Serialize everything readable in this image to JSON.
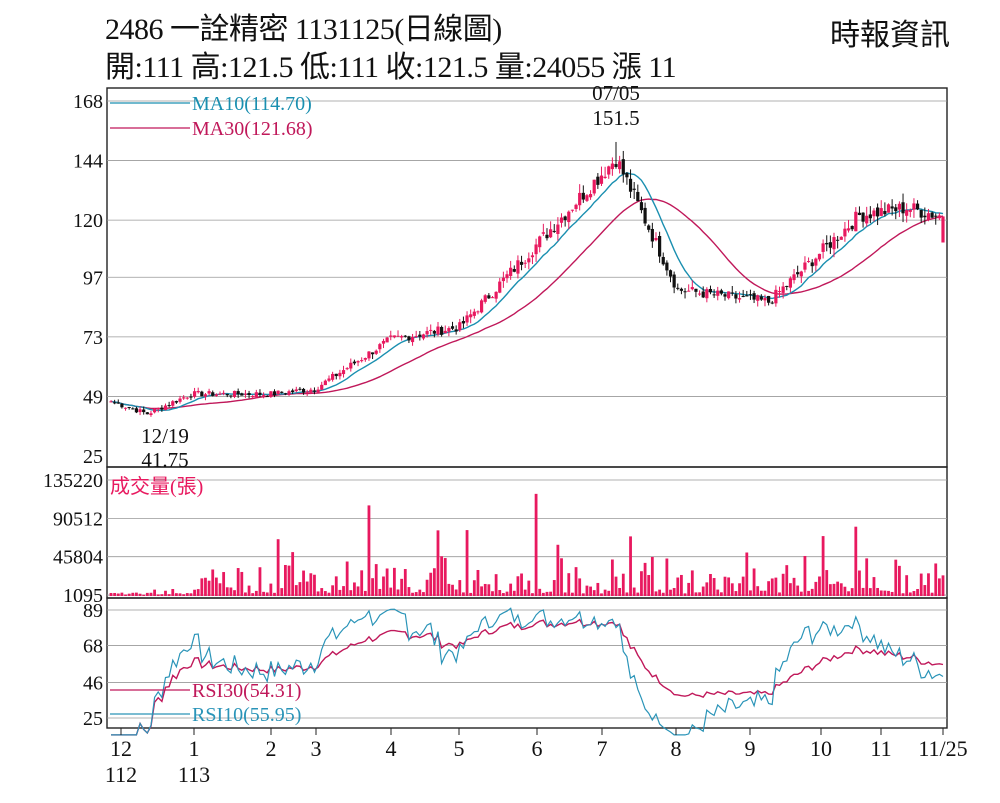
{
  "header": {
    "title": "2486  一詮精密 1131125(日線圖)",
    "stats": "開:111 高:121.5 低:111 收:121.5 量:24055 漲 11",
    "source": "時報資訊"
  },
  "colors": {
    "up": "#e8195f",
    "down": "#111111",
    "ma10": "#1a8fb0",
    "ma30": "#c0185a",
    "volume": "#e8195f",
    "rsi10": "#2a94b8",
    "rsi30": "#c0185a",
    "grid": "#999999"
  },
  "chart_data": [
    {
      "type": "candlestick",
      "panel": "price",
      "yticks": [
        168,
        144,
        120,
        97,
        73,
        49,
        25
      ],
      "ylim": [
        25,
        168
      ],
      "legend": [
        {
          "key": "ma10",
          "label": "MA10(114.70)"
        },
        {
          "key": "ma30",
          "label": "MA30(121.68)"
        }
      ],
      "annotations": [
        {
          "date": "07/05",
          "value": "151.5",
          "kind": "high"
        },
        {
          "date": "12/19",
          "value": "41.75",
          "kind": "low"
        }
      ],
      "period_start_month": "12/112",
      "period_end": "11/25/113",
      "last_close": 121.5,
      "anchor_points": [
        {
          "month": "12",
          "close": 47
        },
        {
          "month": "12/19",
          "close": 42
        },
        {
          "month": "1",
          "close": 50
        },
        {
          "month": "2",
          "close": 50
        },
        {
          "month": "3",
          "close": 52
        },
        {
          "month": "4",
          "close": 72
        },
        {
          "month": "5",
          "close": 77
        },
        {
          "month": "6",
          "close": 110
        },
        {
          "month": "07/05",
          "close": 145
        },
        {
          "month": "8",
          "close": 92
        },
        {
          "month": "9",
          "close": 87
        },
        {
          "month": "10",
          "close": 122
        },
        {
          "month": "11",
          "close": 125
        },
        {
          "month": "11/25",
          "close": 121.5
        }
      ]
    },
    {
      "type": "bar",
      "panel": "volume",
      "title": "成交量(張)",
      "yticks": [
        135220,
        90512,
        45804,
        1095
      ],
      "ylim": [
        0,
        135220
      ],
      "last_volume": 24055
    },
    {
      "type": "line",
      "panel": "rsi",
      "yticks": [
        89,
        68,
        46,
        25
      ],
      "ylim": [
        15,
        95
      ],
      "legend": [
        {
          "key": "rsi30",
          "label": "RSI30(54.31)"
        },
        {
          "key": "rsi10",
          "label": "RSI10(55.95)"
        }
      ]
    }
  ],
  "x_axis": {
    "labels": [
      {
        "month": "12",
        "year": "112"
      },
      {
        "month": "1",
        "year": "113"
      },
      {
        "month": "2",
        "year": ""
      },
      {
        "month": "3",
        "year": ""
      },
      {
        "month": "4",
        "year": ""
      },
      {
        "month": "5",
        "year": ""
      },
      {
        "month": "6",
        "year": ""
      },
      {
        "month": "7",
        "year": ""
      },
      {
        "month": "8",
        "year": ""
      },
      {
        "month": "9",
        "year": ""
      },
      {
        "month": "10",
        "year": ""
      },
      {
        "month": "11",
        "year": ""
      },
      {
        "month": "11/25",
        "year": ""
      }
    ]
  }
}
